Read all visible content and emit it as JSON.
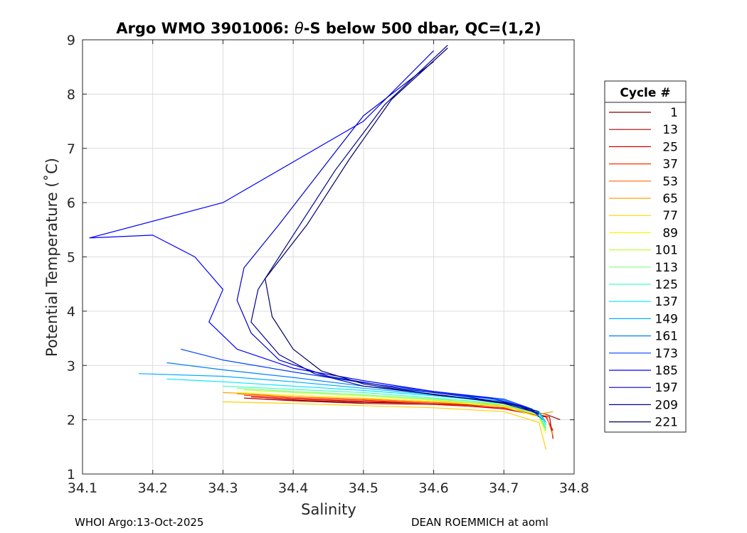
{
  "chart_data": {
    "type": "line",
    "title": "Argo WMO 3901006: θ-S below 500 dbar,  QC=(1,2)",
    "title_parts": [
      "Argo WMO 3901006: ",
      "θ",
      "-S below 500 dbar,  QC=(1,2)"
    ],
    "xlabel": "Salinity",
    "ylabel": "Potential Temperature (˚C)",
    "xlim": [
      34.1,
      34.8
    ],
    "ylim": [
      1,
      9
    ],
    "xticks": [
      "34.1",
      "34.2",
      "34.3",
      "34.4",
      "34.5",
      "34.6",
      "34.7",
      "34.8"
    ],
    "yticks": [
      "1",
      "2",
      "3",
      "4",
      "5",
      "6",
      "7",
      "8",
      "9"
    ],
    "grid": true,
    "legend": {
      "title": "Cycle #",
      "placement": "right-outside",
      "entries": [
        "1",
        "13",
        "25",
        "37",
        "53",
        "65",
        "77",
        "89",
        "101",
        "113",
        "125",
        "137",
        "149",
        "161",
        "173",
        "185",
        "197",
        "209",
        "221"
      ],
      "colors": [
        "#800000",
        "#b00000",
        "#e00000",
        "#ff3000",
        "#ff6800",
        "#ffa000",
        "#ffd000",
        "#f8f800",
        "#c0ff40",
        "#80ff80",
        "#40ffc0",
        "#00e8ff",
        "#00b0ff",
        "#0080ff",
        "#0040ff",
        "#0000ff",
        "#0000c8",
        "#000090",
        "#000060"
      ]
    },
    "series": [
      {
        "name": "Cycle 1",
        "color": "#800000",
        "points": [
          [
            34.78,
            2.0
          ],
          [
            34.76,
            2.1
          ],
          [
            34.7,
            2.25
          ],
          [
            34.6,
            2.3
          ],
          [
            34.5,
            2.32
          ],
          [
            34.42,
            2.35
          ],
          [
            34.36,
            2.38
          ]
        ]
      },
      {
        "name": "Cycle 13",
        "color": "#b00000",
        "points": [
          [
            34.77,
            1.65
          ],
          [
            34.765,
            2.05
          ],
          [
            34.7,
            2.22
          ],
          [
            34.6,
            2.28
          ],
          [
            34.5,
            2.3
          ],
          [
            34.4,
            2.35
          ],
          [
            34.33,
            2.4
          ]
        ]
      },
      {
        "name": "Cycle 25",
        "color": "#e00000",
        "points": [
          [
            34.77,
            1.8
          ],
          [
            34.76,
            2.05
          ],
          [
            34.7,
            2.2
          ],
          [
            34.6,
            2.3
          ],
          [
            34.5,
            2.34
          ],
          [
            34.4,
            2.38
          ],
          [
            34.34,
            2.42
          ]
        ]
      },
      {
        "name": "Cycle 37",
        "color": "#ff3000",
        "points": [
          [
            34.76,
            1.85
          ],
          [
            34.75,
            2.08
          ],
          [
            34.7,
            2.22
          ],
          [
            34.6,
            2.3
          ],
          [
            34.5,
            2.36
          ],
          [
            34.4,
            2.4
          ],
          [
            34.33,
            2.45
          ]
        ]
      },
      {
        "name": "Cycle 53",
        "color": "#ff6800",
        "points": [
          [
            34.77,
            1.7
          ],
          [
            34.76,
            2.1
          ],
          [
            34.7,
            2.25
          ],
          [
            34.6,
            2.32
          ],
          [
            34.5,
            2.38
          ],
          [
            34.4,
            2.42
          ],
          [
            34.32,
            2.48
          ]
        ]
      },
      {
        "name": "Cycle 65",
        "color": "#ffa000",
        "points": [
          [
            34.77,
            2.15
          ],
          [
            34.75,
            2.1
          ],
          [
            34.7,
            2.28
          ],
          [
            34.6,
            2.34
          ],
          [
            34.5,
            2.4
          ],
          [
            34.4,
            2.45
          ],
          [
            34.3,
            2.5
          ]
        ]
      },
      {
        "name": "Cycle 77",
        "color": "#ffd000",
        "points": [
          [
            34.76,
            1.45
          ],
          [
            34.75,
            1.95
          ],
          [
            34.7,
            2.15
          ],
          [
            34.6,
            2.22
          ],
          [
            34.5,
            2.26
          ],
          [
            34.4,
            2.3
          ],
          [
            34.3,
            2.33
          ]
        ]
      },
      {
        "name": "Cycle 89",
        "color": "#f8f800",
        "points": [
          [
            34.76,
            1.75
          ],
          [
            34.75,
            2.05
          ],
          [
            34.7,
            2.24
          ],
          [
            34.6,
            2.34
          ],
          [
            34.5,
            2.4
          ],
          [
            34.4,
            2.45
          ],
          [
            34.32,
            2.5
          ]
        ]
      },
      {
        "name": "Cycle 101",
        "color": "#c0ff40",
        "points": [
          [
            34.76,
            1.8
          ],
          [
            34.75,
            2.08
          ],
          [
            34.7,
            2.26
          ],
          [
            34.6,
            2.36
          ],
          [
            34.5,
            2.44
          ],
          [
            34.4,
            2.5
          ],
          [
            34.33,
            2.55
          ]
        ]
      },
      {
        "name": "Cycle 113",
        "color": "#80ff80",
        "points": [
          [
            34.76,
            1.85
          ],
          [
            34.75,
            2.1
          ],
          [
            34.7,
            2.28
          ],
          [
            34.6,
            2.38
          ],
          [
            34.5,
            2.46
          ],
          [
            34.4,
            2.52
          ],
          [
            34.32,
            2.58
          ]
        ]
      },
      {
        "name": "Cycle 125",
        "color": "#40ffc0",
        "points": [
          [
            34.76,
            1.8
          ],
          [
            34.75,
            2.12
          ],
          [
            34.7,
            2.3
          ],
          [
            34.6,
            2.4
          ],
          [
            34.5,
            2.5
          ],
          [
            34.4,
            2.56
          ],
          [
            34.3,
            2.62
          ]
        ]
      },
      {
        "name": "Cycle 137",
        "color": "#00e8ff",
        "points": [
          [
            34.76,
            1.9
          ],
          [
            34.75,
            2.14
          ],
          [
            34.7,
            2.32
          ],
          [
            34.6,
            2.44
          ],
          [
            34.5,
            2.54
          ],
          [
            34.4,
            2.62
          ],
          [
            34.3,
            2.7
          ],
          [
            34.22,
            2.75
          ]
        ]
      },
      {
        "name": "Cycle 149",
        "color": "#00b0ff",
        "points": [
          [
            34.76,
            1.95
          ],
          [
            34.75,
            2.15
          ],
          [
            34.7,
            2.34
          ],
          [
            34.6,
            2.46
          ],
          [
            34.5,
            2.58
          ],
          [
            34.4,
            2.7
          ],
          [
            34.3,
            2.8
          ],
          [
            34.18,
            2.85
          ]
        ]
      },
      {
        "name": "Cycle 161",
        "color": "#0080ff",
        "points": [
          [
            34.755,
            2.0
          ],
          [
            34.74,
            2.18
          ],
          [
            34.7,
            2.36
          ],
          [
            34.6,
            2.5
          ],
          [
            34.5,
            2.62
          ],
          [
            34.4,
            2.78
          ],
          [
            34.3,
            2.92
          ],
          [
            34.22,
            3.05
          ]
        ]
      },
      {
        "name": "Cycle 173",
        "color": "#0040ff",
        "points": [
          [
            34.75,
            2.05
          ],
          [
            34.74,
            2.2
          ],
          [
            34.7,
            2.38
          ],
          [
            34.6,
            2.52
          ],
          [
            34.5,
            2.68
          ],
          [
            34.4,
            2.88
          ],
          [
            34.3,
            3.1
          ],
          [
            34.24,
            3.3
          ]
        ]
      },
      {
        "name": "Cycle 185",
        "color": "#0000ff",
        "points": [
          [
            34.75,
            2.1
          ],
          [
            34.73,
            2.24
          ],
          [
            34.68,
            2.4
          ],
          [
            34.6,
            2.52
          ],
          [
            34.5,
            2.72
          ],
          [
            34.4,
            2.95
          ],
          [
            34.32,
            3.3
          ],
          [
            34.28,
            3.8
          ],
          [
            34.3,
            4.4
          ],
          [
            34.26,
            5.0
          ],
          [
            34.2,
            5.4
          ],
          [
            34.11,
            5.35
          ],
          [
            34.3,
            6.0
          ],
          [
            34.5,
            7.5
          ],
          [
            34.6,
            8.8
          ]
        ]
      },
      {
        "name": "Cycle 197",
        "color": "#0000c8",
        "points": [
          [
            34.75,
            2.1
          ],
          [
            34.72,
            2.26
          ],
          [
            34.65,
            2.42
          ],
          [
            34.55,
            2.58
          ],
          [
            34.45,
            2.8
          ],
          [
            34.38,
            3.1
          ],
          [
            34.34,
            3.6
          ],
          [
            34.32,
            4.2
          ],
          [
            34.33,
            4.8
          ],
          [
            34.38,
            5.6
          ],
          [
            34.44,
            6.6
          ],
          [
            34.5,
            7.6
          ],
          [
            34.6,
            8.6
          ]
        ]
      },
      {
        "name": "Cycle 209",
        "color": "#000090",
        "points": [
          [
            34.75,
            2.12
          ],
          [
            34.7,
            2.3
          ],
          [
            34.62,
            2.44
          ],
          [
            34.5,
            2.62
          ],
          [
            34.43,
            2.85
          ],
          [
            34.38,
            3.2
          ],
          [
            34.34,
            3.8
          ],
          [
            34.35,
            4.4
          ],
          [
            34.4,
            5.4
          ],
          [
            34.46,
            6.6
          ],
          [
            34.53,
            7.8
          ],
          [
            34.62,
            8.9
          ]
        ]
      },
      {
        "name": "Cycle 221",
        "color": "#000060",
        "points": [
          [
            34.75,
            2.15
          ],
          [
            34.7,
            2.32
          ],
          [
            34.6,
            2.46
          ],
          [
            34.5,
            2.66
          ],
          [
            34.44,
            2.9
          ],
          [
            34.4,
            3.3
          ],
          [
            34.37,
            3.9
          ],
          [
            34.36,
            4.6
          ],
          [
            34.42,
            5.6
          ],
          [
            34.48,
            6.8
          ],
          [
            34.54,
            7.9
          ],
          [
            34.62,
            8.85
          ]
        ]
      }
    ]
  },
  "footer": {
    "left": "WHOI Argo:13-Oct-2025",
    "right": "DEAN ROEMMICH at aoml"
  }
}
